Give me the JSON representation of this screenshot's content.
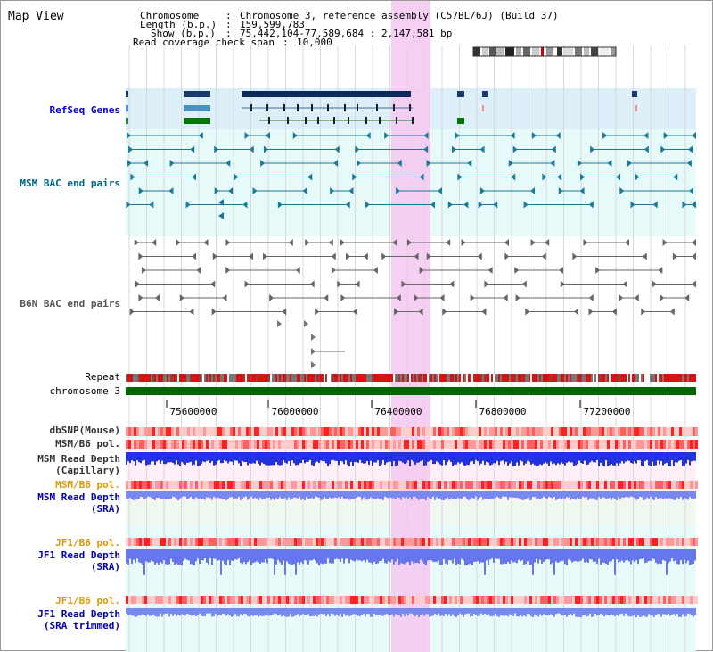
{
  "view_title": "Map View",
  "info": {
    "chromosome_key": "Chromosome",
    "chromosome_value": "Chromosome 3, reference assembly (C57BL/6J) (Build 37)",
    "length_key": "Length (b.p.)",
    "length_value": "159,599,783",
    "show_key": "Show (b.p.)",
    "show_value": "75,442,104-77,589,684 : 2,147,581 bp",
    "coverage_key": "Read coverage check span",
    "coverage_value": "10,000"
  },
  "tracks": {
    "refseq": "RefSeq Genes",
    "msm_bac": "MSM BAC end pairs",
    "b6n_bac": "B6N BAC end pairs",
    "repeat": "Repeat",
    "chromosome": "chromosome 3",
    "dbsnp": "dbSNP(Mouse)",
    "msm_b6_pol": "MSM/B6 pol.",
    "msm_depth_cap_1": "MSM Read Depth",
    "msm_depth_cap_2": "(Capillary)",
    "msm_b6_pol2": "MSM/B6 pol.",
    "msm_depth_sra_1": "MSM Read Depth",
    "msm_depth_sra_2": "(SRA)",
    "jf1_b6_pol": "JF1/B6 pol.",
    "jf1_depth_sra_1": "JF1 Read Depth",
    "jf1_depth_sra_2": "(SRA)",
    "jf1_b6_pol2": "JF1/B6 pol.",
    "jf1_depth_trim_1": "JF1 Read Depth",
    "jf1_depth_trim_2": "(SRA trimmed)"
  },
  "axis": {
    "ticks": [
      "75600000",
      "76000000",
      "76400000",
      "76800000",
      "77200000"
    ]
  },
  "colors": {
    "refseq_label": "#0000cc",
    "msm_label": "#006688",
    "b6n_label": "#555555",
    "orange_label": "#dd9900",
    "blue_label": "#0000aa",
    "dark_label": "#333333",
    "highlight": "#f5c8f0",
    "refseq_bg": "#ddf0fa",
    "msm_bg": "#e6fafa",
    "chrom_bar": "#006600"
  }
}
